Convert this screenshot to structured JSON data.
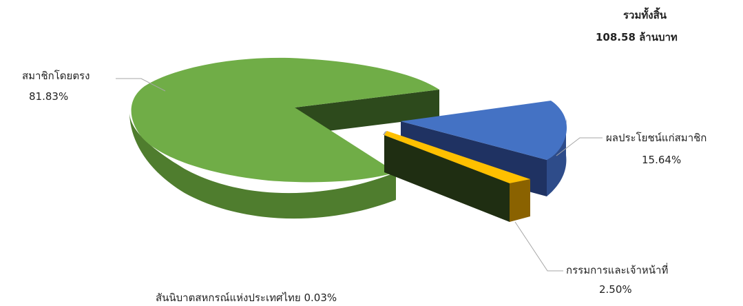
{
  "chart_data": {
    "type": "pie",
    "style": "3d-exploded",
    "total_label": "รวมทั้งสิ้น",
    "total_value": "108.58 ล้านบาท",
    "slices": [
      {
        "name": "สมาชิกโดยตรง",
        "value": 81.83,
        "value_label": "81.83%",
        "color": "#70ad47"
      },
      {
        "name": "ผลประโยชน์แก่สมาชิก",
        "value": 15.64,
        "value_label": "15.64%",
        "color": "#4472c4"
      },
      {
        "name": "กรรมการและเจ้าหน้าที่",
        "value": 2.5,
        "value_label": "2.50%",
        "color": "#ffc000"
      },
      {
        "name": "สันนิบาตสหกรณ์แห่งประเทศไทย",
        "value": 0.03,
        "value_label": "0.03%",
        "color": "#a5a5a5"
      }
    ]
  }
}
